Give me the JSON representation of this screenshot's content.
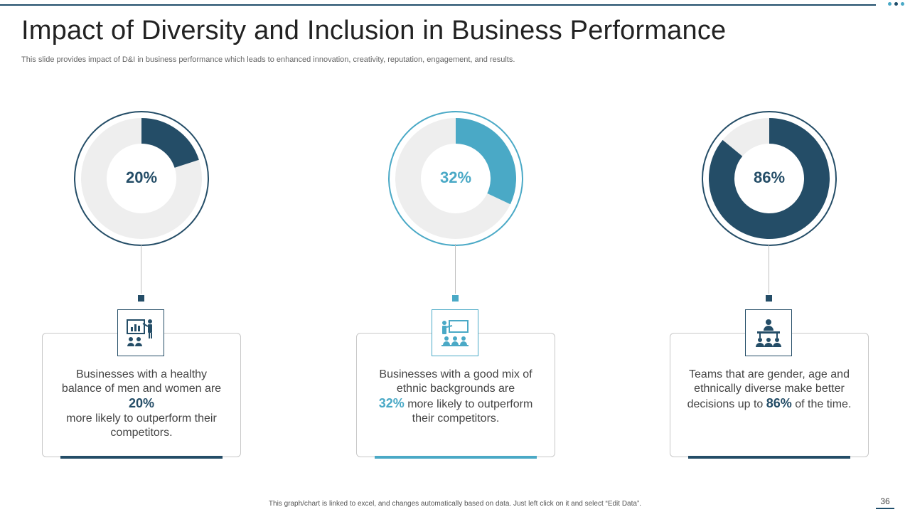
{
  "slide": {
    "title": "Impact of Diversity and Inclusion in Business Performance",
    "subtitle": "This slide provides impact of D&I in business performance which leads to enhanced innovation, creativity, reputation, engagement, and results.",
    "footer_note": "This graph/chart is linked to excel, and changes automatically based on data. Just left click on it and select “Edit Data”.",
    "page_number": "36"
  },
  "colors": {
    "dark": "#244d67",
    "light": "#4aa9c6",
    "track": "#eeeeee"
  },
  "chart_data": {
    "type": "pie",
    "charts": [
      {
        "label": "20%",
        "value": 20
      },
      {
        "label": "32%",
        "value": 32
      },
      {
        "label": "86%",
        "value": 86
      }
    ]
  },
  "cards": [
    {
      "percent_label": "20%",
      "icon": "presentation-chart-audience-icon",
      "text_before": "Businesses with a healthy balance of men and women are",
      "highlight": "20%",
      "text_after": "more likely to outperform their competitors.",
      "accent": "#244d67"
    },
    {
      "percent_label": "32%",
      "icon": "whiteboard-training-icon",
      "text_before": "Businesses with a good mix of ethnic backgrounds are",
      "highlight": "32%",
      "text_after": "more likely to outperform their competitors.",
      "accent": "#4aa9c6"
    },
    {
      "percent_label": "86%",
      "icon": "team-meeting-icon",
      "text_before": "Teams that are gender, age and ethnically diverse make better decisions up to",
      "highlight": "86%",
      "text_after": "of the time.",
      "accent": "#244d67"
    }
  ]
}
